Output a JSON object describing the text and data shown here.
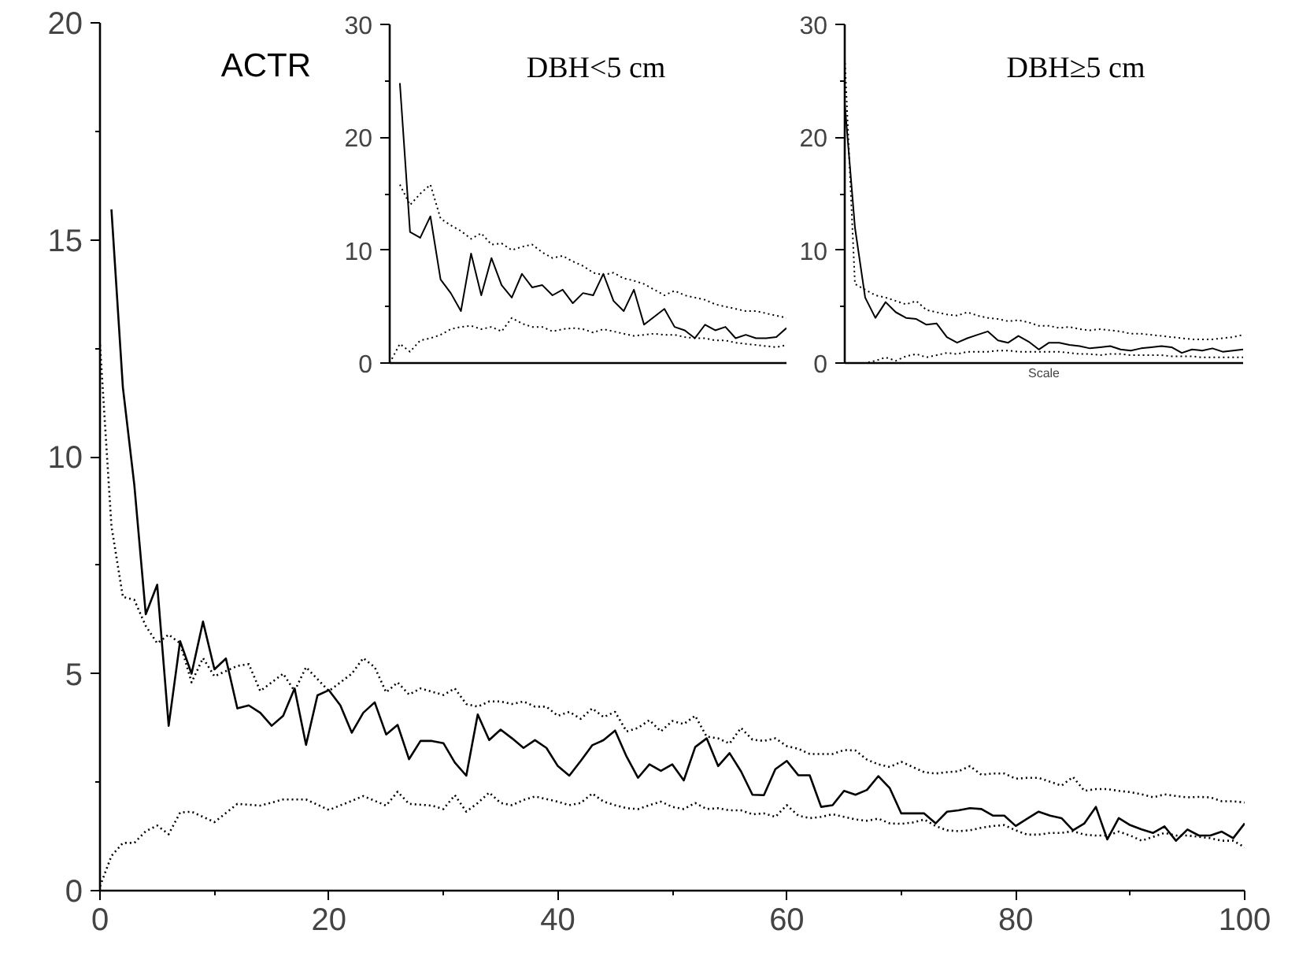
{
  "chart_data": [
    {
      "type": "line",
      "title": "ACTR",
      "xlim": [
        0,
        100
      ],
      "ylim": [
        0,
        20
      ],
      "xticks": [
        0,
        20,
        40,
        60,
        80,
        100
      ],
      "yticks": [
        0,
        5,
        10,
        15,
        20
      ],
      "series": [
        {
          "color": "#000000",
          "line_style": "solid",
          "x": [
            1,
            2,
            3,
            4,
            5,
            6,
            7,
            8,
            9,
            10,
            11,
            12,
            13,
            14,
            15,
            16,
            17,
            18,
            19,
            20,
            21,
            22,
            23,
            24,
            25,
            26,
            27,
            28,
            29,
            30,
            31,
            32,
            33,
            34,
            35,
            36,
            37,
            38,
            39,
            40,
            41,
            42,
            43,
            44,
            45,
            46,
            47,
            48,
            49,
            50,
            51,
            52,
            53,
            54,
            55,
            56,
            57,
            58,
            59,
            60,
            61,
            62,
            63,
            64,
            65,
            66,
            67,
            68,
            69,
            70,
            71,
            72,
            73,
            74,
            75,
            76,
            77,
            78,
            79,
            80,
            81,
            82,
            83,
            84,
            85,
            86,
            87,
            88,
            89,
            90,
            91,
            92,
            93,
            94,
            95,
            96,
            97,
            98,
            99,
            100
          ],
          "values": [
            15.7,
            11.6,
            9.35,
            6.37,
            7.05,
            3.8,
            5.75,
            5.0,
            6.2,
            5.1,
            5.35,
            4.2,
            4.27,
            4.1,
            3.8,
            4.03,
            4.66,
            3.36,
            4.5,
            4.62,
            4.27,
            3.64,
            4.1,
            4.34,
            3.6,
            3.82,
            3.03,
            3.45,
            3.45,
            3.4,
            2.95,
            2.65,
            4.06,
            3.47,
            3.71,
            3.51,
            3.29,
            3.47,
            3.29,
            2.87,
            2.65,
            2.99,
            3.35,
            3.47,
            3.69,
            3.09,
            2.6,
            2.91,
            2.76,
            2.91,
            2.54,
            3.31,
            3.51,
            2.87,
            3.17,
            2.75,
            2.21,
            2.2,
            2.8,
            2.99,
            2.66,
            2.66,
            1.93,
            1.97,
            2.3,
            2.21,
            2.32,
            2.64,
            2.36,
            1.78,
            1.78,
            1.78,
            1.55,
            1.82,
            1.85,
            1.9,
            1.88,
            1.73,
            1.73,
            1.49,
            1.66,
            1.82,
            1.73,
            1.67,
            1.39,
            1.55,
            1.93,
            1.18,
            1.67,
            1.51,
            1.41,
            1.33,
            1.48,
            1.15,
            1.41,
            1.27,
            1.27,
            1.36,
            1.21,
            1.55
          ]
        },
        {
          "color": "#000000",
          "line_style": "dotted",
          "x": [
            0,
            1,
            2,
            3,
            4,
            5,
            6,
            7,
            8,
            9,
            10,
            12,
            13,
            14,
            16,
            17,
            18,
            20,
            22,
            23,
            24,
            25,
            26,
            27,
            28,
            30,
            31,
            32,
            33,
            34,
            35,
            36,
            37,
            38,
            39,
            40,
            41,
            42,
            43,
            44,
            45,
            46,
            47,
            48,
            49,
            50,
            51,
            52,
            53,
            54,
            55,
            56,
            57,
            58,
            59,
            60,
            61,
            62,
            63,
            64,
            65,
            66,
            67,
            68,
            69,
            70,
            71,
            72,
            73,
            74,
            75,
            76,
            77,
            78,
            79,
            80,
            81,
            82,
            83,
            84,
            85,
            86,
            87,
            88,
            89,
            90,
            91,
            92,
            93,
            94,
            95,
            96,
            97,
            98,
            99,
            100
          ],
          "values": [
            12.58,
            8.4,
            6.77,
            6.7,
            6.1,
            5.7,
            5.9,
            5.7,
            4.8,
            5.36,
            4.94,
            5.18,
            5.22,
            4.6,
            5.0,
            4.6,
            5.15,
            4.6,
            5.0,
            5.36,
            5.15,
            4.57,
            4.8,
            4.52,
            4.66,
            4.51,
            4.66,
            4.3,
            4.24,
            4.36,
            4.36,
            4.3,
            4.36,
            4.24,
            4.24,
            4.03,
            4.12,
            3.96,
            4.2,
            4.0,
            4.12,
            3.67,
            3.75,
            3.93,
            3.67,
            3.91,
            3.84,
            4.03,
            3.55,
            3.51,
            3.39,
            3.75,
            3.48,
            3.45,
            3.51,
            3.33,
            3.27,
            3.15,
            3.15,
            3.15,
            3.24,
            3.23,
            3.02,
            2.91,
            2.85,
            2.97,
            2.85,
            2.73,
            2.7,
            2.73,
            2.75,
            2.87,
            2.67,
            2.7,
            2.7,
            2.58,
            2.6,
            2.6,
            2.51,
            2.42,
            2.62,
            2.3,
            2.34,
            2.34,
            2.3,
            2.27,
            2.22,
            2.15,
            2.22,
            2.18,
            2.15,
            2.16,
            2.15,
            2.06,
            2.06,
            2.03
          ]
        },
        {
          "color": "#000000",
          "line_style": "dotted",
          "x": [
            0,
            1,
            2,
            3,
            4,
            5,
            6,
            7,
            8,
            10,
            12,
            14,
            16,
            18,
            20,
            22,
            23,
            25,
            26,
            27,
            29,
            30,
            31,
            32,
            33,
            34,
            35,
            36,
            37,
            38,
            39,
            40,
            41,
            42,
            43,
            44,
            45,
            46,
            47,
            48,
            49,
            50,
            51,
            52,
            53,
            54,
            55,
            56,
            57,
            58,
            59,
            60,
            61,
            62,
            63,
            64,
            65,
            66,
            67,
            68,
            69,
            70,
            71,
            72,
            73,
            74,
            75,
            76,
            77,
            78,
            79,
            80,
            81,
            82,
            83,
            84,
            85,
            86,
            87,
            88,
            89,
            90,
            91,
            92,
            93,
            94,
            95,
            96,
            97,
            98,
            99,
            100
          ],
          "values": [
            0.1,
            0.8,
            1.1,
            1.1,
            1.37,
            1.5,
            1.3,
            1.8,
            1.82,
            1.58,
            2.0,
            1.96,
            2.1,
            2.1,
            1.86,
            2.07,
            2.18,
            1.96,
            2.28,
            2.0,
            1.96,
            1.88,
            2.2,
            1.82,
            2.02,
            2.26,
            2.02,
            1.97,
            2.09,
            2.17,
            2.11,
            2.05,
            1.97,
            2.02,
            2.24,
            2.05,
            1.97,
            1.9,
            1.88,
            1.97,
            2.05,
            1.93,
            1.88,
            2.02,
            1.88,
            1.9,
            1.85,
            1.85,
            1.76,
            1.78,
            1.7,
            1.97,
            1.73,
            1.67,
            1.7,
            1.76,
            1.7,
            1.64,
            1.61,
            1.66,
            1.55,
            1.54,
            1.57,
            1.64,
            1.49,
            1.39,
            1.37,
            1.39,
            1.45,
            1.49,
            1.51,
            1.39,
            1.29,
            1.29,
            1.33,
            1.33,
            1.37,
            1.29,
            1.27,
            1.27,
            1.36,
            1.27,
            1.15,
            1.24,
            1.33,
            1.27,
            1.27,
            1.24,
            1.21,
            1.15,
            1.15,
            1.0
          ]
        }
      ]
    },
    {
      "type": "line",
      "title": "DBH<5 cm",
      "ylim": [
        0,
        30
      ],
      "yticks": [
        0,
        10,
        20,
        30
      ],
      "tick_labels": "y",
      "categories": [
        null,
        null,
        null,
        null,
        null,
        null,
        null,
        null,
        null,
        null,
        null,
        null,
        null,
        null,
        null,
        null,
        null,
        null,
        null,
        null,
        null,
        null,
        null,
        null,
        null,
        null,
        null,
        null,
        null,
        null,
        null,
        null,
        null,
        null,
        null,
        null,
        null,
        null,
        null,
        null
      ],
      "series": [
        {
          "color": "#000000",
          "line_style": "solid",
          "values": [
            null,
            24.8,
            11.6,
            11.1,
            13.0,
            7.4,
            6.2,
            4.6,
            9.7,
            6.0,
            9.3,
            6.9,
            5.8,
            7.9,
            6.7,
            6.9,
            6.0,
            6.5,
            5.3,
            6.2,
            6.0,
            7.9,
            5.5,
            4.6,
            6.5,
            3.4,
            4.1,
            4.8,
            3.2,
            2.9,
            2.2,
            3.4,
            2.9,
            3.2,
            2.2,
            2.5,
            2.2,
            2.2,
            2.3,
            3.1
          ]
        },
        {
          "color": "#000000",
          "line_style": "dotted",
          "values": [
            null,
            15.8,
            14.0,
            15.0,
            15.8,
            12.8,
            12.2,
            11.7,
            11.0,
            11.5,
            10.5,
            10.6,
            10.0,
            10.3,
            10.5,
            9.8,
            9.3,
            9.5,
            9.0,
            8.6,
            8.0,
            7.8,
            8.0,
            7.5,
            7.3,
            7.0,
            6.5,
            6.0,
            6.4,
            6.0,
            5.8,
            5.6,
            5.2,
            5.0,
            4.8,
            4.6,
            4.6,
            4.4,
            4.2,
            4.0
          ]
        },
        {
          "color": "#000000",
          "line_style": "dotted",
          "values": [
            0,
            1.7,
            1.0,
            2.0,
            2.2,
            2.5,
            3.0,
            3.2,
            3.3,
            3.0,
            3.2,
            2.8,
            4.0,
            3.5,
            3.2,
            3.2,
            2.8,
            3.0,
            3.1,
            3.0,
            2.7,
            3.0,
            2.8,
            2.6,
            2.4,
            2.5,
            2.6,
            2.5,
            2.5,
            2.3,
            2.2,
            2.2,
            2.0,
            2.0,
            1.8,
            1.7,
            1.6,
            1.5,
            1.4,
            1.6
          ]
        }
      ]
    },
    {
      "type": "line",
      "title": "DBH≥5 cm",
      "xlabel": "Scale",
      "ylim": [
        0,
        30
      ],
      "yticks": [
        0,
        10,
        20,
        30
      ],
      "tick_labels": "y",
      "categories": [
        null,
        null,
        null,
        null,
        null,
        null,
        null,
        null,
        null,
        null,
        null,
        null,
        null,
        null,
        null,
        null,
        null,
        null,
        null,
        null,
        null,
        null,
        null,
        null,
        null,
        null,
        null,
        null,
        null,
        null,
        null,
        null,
        null,
        null,
        null,
        null,
        null,
        null,
        null,
        null
      ],
      "series": [
        {
          "color": "#000000",
          "line_style": "solid",
          "values": [
            23,
            12,
            5.8,
            4.0,
            5.4,
            4.5,
            4.0,
            3.9,
            3.4,
            3.5,
            2.3,
            1.8,
            2.2,
            2.5,
            2.8,
            2.0,
            1.8,
            2.4,
            1.9,
            1.2,
            1.8,
            1.8,
            1.6,
            1.5,
            1.3,
            1.4,
            1.5,
            1.2,
            1.1,
            1.3,
            1.4,
            1.5,
            1.4,
            0.9,
            1.2,
            1.1,
            1.3,
            1.0,
            1.1,
            1.2
          ]
        },
        {
          "color": "#000000",
          "line_style": "dotted",
          "values": [
            27,
            7.0,
            6.5,
            6.0,
            5.8,
            5.5,
            5.2,
            5.5,
            4.7,
            4.5,
            4.3,
            4.2,
            4.5,
            4.2,
            4.0,
            3.9,
            3.7,
            3.8,
            3.6,
            3.3,
            3.3,
            3.1,
            3.2,
            3.0,
            2.9,
            3.0,
            2.9,
            2.8,
            2.6,
            2.6,
            2.5,
            2.4,
            2.3,
            2.2,
            2.1,
            2.1,
            2.1,
            2.2,
            2.3,
            2.5
          ]
        },
        {
          "color": "#000000",
          "line_style": "dotted",
          "values": [
            0,
            0,
            0,
            0.2,
            0.5,
            0.2,
            0.6,
            0.8,
            0.5,
            0.7,
            0.9,
            0.8,
            1.0,
            1.0,
            1.0,
            1.1,
            1.1,
            1.0,
            1.0,
            1.0,
            1.0,
            1.0,
            0.9,
            0.8,
            0.8,
            0.7,
            0.8,
            0.8,
            0.7,
            0.7,
            0.7,
            0.7,
            0.6,
            0.6,
            0.6,
            0.5,
            0.5,
            0.5,
            0.5,
            0.5
          ]
        }
      ]
    }
  ]
}
